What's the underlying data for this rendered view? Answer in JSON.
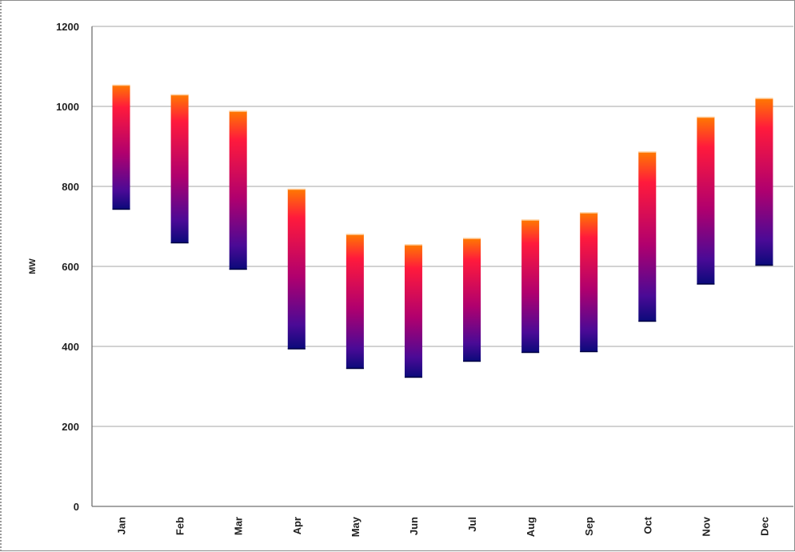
{
  "chart_data": {
    "type": "bar",
    "subtype": "floating-range",
    "ylabel": "MW",
    "ylim": [
      0,
      1200
    ],
    "yticks": [
      0,
      200,
      400,
      600,
      800,
      1000,
      1200
    ],
    "grid": true,
    "categories": [
      "Jan",
      "Feb",
      "Mar",
      "Apr",
      "May",
      "Jun",
      "Jul",
      "Aug",
      "Sep",
      "Oct",
      "Nov",
      "Dec"
    ],
    "series": [
      {
        "low": [
          742,
          658,
          592,
          393,
          344,
          322,
          362,
          384,
          386,
          462,
          555,
          602
        ],
        "high": [
          1054,
          1030,
          989,
          794,
          681,
          655,
          671,
          717,
          735,
          887,
          974,
          1021
        ]
      }
    ],
    "colors": {
      "top": "#ff7a00",
      "upper": "#ff1a3c",
      "middle": "#b0006e",
      "lower": "#4a0a96",
      "bottom": "#0a0a7a",
      "grid": "#b8b8b8",
      "axis": "#707070"
    }
  }
}
